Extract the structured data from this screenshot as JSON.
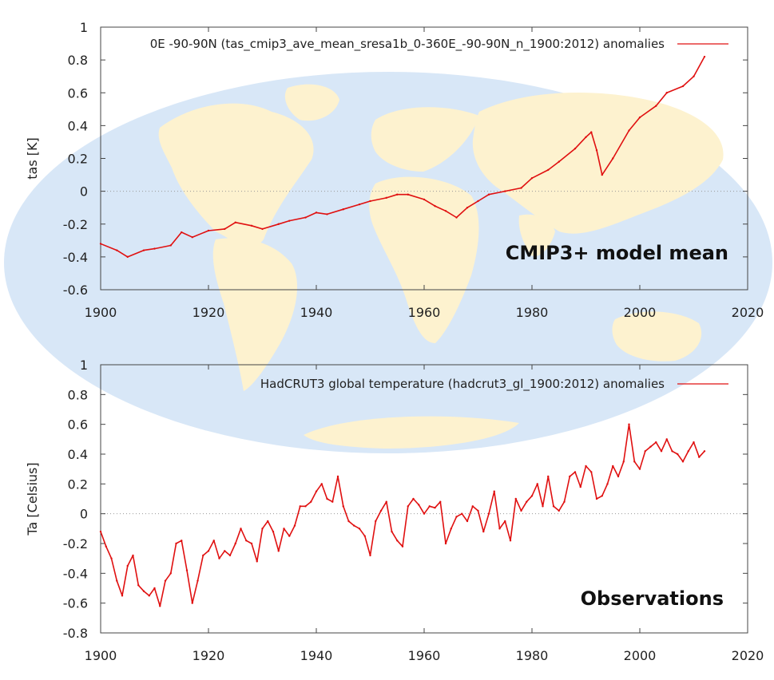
{
  "colors": {
    "series": "#e01010",
    "globe": "#d8e7f7",
    "land": "#fdf2cf",
    "frame": "#444444",
    "zero": "#999999"
  },
  "charts": [
    {
      "id": "top",
      "legend": "0E -90-90N (tas_cmip3_ave_mean_sresa1b_0-360E_-90-90N_n_1900:2012) anomalies",
      "ylabel": "tas [K]",
      "overlay": "CMIP3+ model mean",
      "xticks": [
        "1900",
        "1920",
        "1940",
        "1960",
        "1980",
        "2000",
        "2020"
      ],
      "yticks": [
        "-0.6",
        "-0.4",
        "-0.2",
        "0",
        "0.2",
        "0.4",
        "0.6",
        "0.8",
        "1"
      ]
    },
    {
      "id": "bottom",
      "legend": "HadCRUT3 global temperature (hadcrut3_gl_1900:2012) anomalies",
      "ylabel": "Ta [Celsius]",
      "overlay": "Observations",
      "xticks": [
        "1900",
        "1920",
        "1940",
        "1960",
        "1980",
        "2000",
        "2020"
      ],
      "yticks": [
        "-0.8",
        "-0.6",
        "-0.4",
        "-0.2",
        "0",
        "0.2",
        "0.4",
        "0.6",
        "0.8",
        "1"
      ]
    }
  ],
  "chart_data": [
    {
      "type": "line",
      "title": "0E -90-90N (tas_cmip3_ave_mean_sresa1b_0-360E_-90-90N_n_1900:2012) anomalies",
      "xlabel": "",
      "ylabel": "tas [K]",
      "xlim": [
        1900,
        2020
      ],
      "ylim": [
        -0.6,
        1.0
      ],
      "legend_position": "top-right",
      "series": [
        {
          "name": "CMIP3+ model mean",
          "x": [
            1900,
            1903,
            1905,
            1908,
            1910,
            1913,
            1915,
            1917,
            1920,
            1923,
            1925,
            1928,
            1930,
            1933,
            1935,
            1938,
            1940,
            1942,
            1945,
            1948,
            1950,
            1953,
            1955,
            1957,
            1960,
            1962,
            1964,
            1966,
            1968,
            1970,
            1972,
            1975,
            1978,
            1980,
            1983,
            1985,
            1988,
            1990,
            1991,
            1992,
            1993,
            1995,
            1998,
            2000,
            2003,
            2005,
            2008,
            2010,
            2012
          ],
          "y": [
            -0.32,
            -0.36,
            -0.4,
            -0.36,
            -0.35,
            -0.33,
            -0.25,
            -0.28,
            -0.24,
            -0.23,
            -0.19,
            -0.21,
            -0.23,
            -0.2,
            -0.18,
            -0.16,
            -0.13,
            -0.14,
            -0.11,
            -0.08,
            -0.06,
            -0.04,
            -0.02,
            -0.02,
            -0.05,
            -0.09,
            -0.12,
            -0.16,
            -0.1,
            -0.06,
            -0.02,
            0.0,
            0.02,
            0.08,
            0.13,
            0.18,
            0.26,
            0.33,
            0.36,
            0.25,
            0.1,
            0.2,
            0.37,
            0.45,
            0.52,
            0.6,
            0.64,
            0.7,
            0.82
          ]
        }
      ]
    },
    {
      "type": "line",
      "title": "HadCRUT3 global temperature (hadcrut3_gl_1900:2012) anomalies",
      "xlabel": "",
      "ylabel": "Ta [Celsius]",
      "xlim": [
        1900,
        2020
      ],
      "ylim": [
        -0.8,
        1.0
      ],
      "legend_position": "top-right",
      "series": [
        {
          "name": "Observations",
          "x": [
            1900,
            1901,
            1902,
            1903,
            1904,
            1905,
            1906,
            1907,
            1908,
            1909,
            1910,
            1911,
            1912,
            1913,
            1914,
            1915,
            1916,
            1917,
            1918,
            1919,
            1920,
            1921,
            1922,
            1923,
            1924,
            1925,
            1926,
            1927,
            1928,
            1929,
            1930,
            1931,
            1932,
            1933,
            1934,
            1935,
            1936,
            1937,
            1938,
            1939,
            1940,
            1941,
            1942,
            1943,
            1944,
            1945,
            1946,
            1947,
            1948,
            1949,
            1950,
            1951,
            1952,
            1953,
            1954,
            1955,
            1956,
            1957,
            1958,
            1959,
            1960,
            1961,
            1962,
            1963,
            1964,
            1965,
            1966,
            1967,
            1968,
            1969,
            1970,
            1971,
            1972,
            1973,
            1974,
            1975,
            1976,
            1977,
            1978,
            1979,
            1980,
            1981,
            1982,
            1983,
            1984,
            1985,
            1986,
            1987,
            1988,
            1989,
            1990,
            1991,
            1992,
            1993,
            1994,
            1995,
            1996,
            1997,
            1998,
            1999,
            2000,
            2001,
            2002,
            2003,
            2004,
            2005,
            2006,
            2007,
            2008,
            2009,
            2010,
            2011,
            2012
          ],
          "y": [
            -0.12,
            -0.22,
            -0.3,
            -0.45,
            -0.55,
            -0.35,
            -0.28,
            -0.48,
            -0.52,
            -0.55,
            -0.5,
            -0.62,
            -0.45,
            -0.4,
            -0.2,
            -0.18,
            -0.38,
            -0.6,
            -0.45,
            -0.28,
            -0.25,
            -0.18,
            -0.3,
            -0.25,
            -0.28,
            -0.2,
            -0.1,
            -0.18,
            -0.2,
            -0.32,
            -0.1,
            -0.05,
            -0.12,
            -0.25,
            -0.1,
            -0.15,
            -0.08,
            0.05,
            0.05,
            0.08,
            0.15,
            0.2,
            0.1,
            0.08,
            0.25,
            0.05,
            -0.05,
            -0.08,
            -0.1,
            -0.15,
            -0.28,
            -0.05,
            0.02,
            0.08,
            -0.12,
            -0.18,
            -0.22,
            0.05,
            0.1,
            0.06,
            0.0,
            0.05,
            0.04,
            0.08,
            -0.2,
            -0.1,
            -0.02,
            0.0,
            -0.05,
            0.05,
            0.02,
            -0.12,
            0.0,
            0.15,
            -0.1,
            -0.05,
            -0.18,
            0.1,
            0.02,
            0.08,
            0.12,
            0.2,
            0.05,
            0.25,
            0.05,
            0.02,
            0.08,
            0.25,
            0.28,
            0.18,
            0.32,
            0.28,
            0.1,
            0.12,
            0.2,
            0.32,
            0.25,
            0.35,
            0.6,
            0.35,
            0.3,
            0.42,
            0.45,
            0.48,
            0.42,
            0.5,
            0.42,
            0.4,
            0.35,
            0.42,
            0.48,
            0.38,
            0.42
          ]
        }
      ]
    }
  ]
}
